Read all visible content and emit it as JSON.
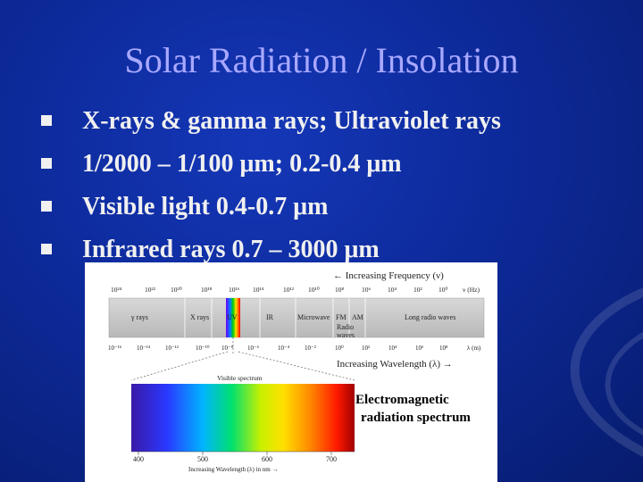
{
  "slide": {
    "title": "Solar Radiation / Insolation",
    "bullets": [
      "X-rays & gamma rays;  Ultraviolet rays",
      "1/2000 – 1/100 μm;  0.2-0.4 μm",
      "Visible light  0.4-0.7 μm",
      "Infrared rays  0.7 – 3000 μm"
    ],
    "caption": {
      "line1": "Electromagnetic",
      "line2": "radiation spectrum"
    }
  },
  "spectrum": {
    "frequency_label": "← Increasing Frequency (ν)",
    "frequency_ticks": [
      "10²⁴",
      "10²²",
      "10²⁰",
      "10¹⁸",
      "10¹⁶",
      "10¹⁴",
      "10¹²",
      "10¹⁰",
      "10⁸",
      "10⁶",
      "10⁴",
      "10²",
      "10⁰"
    ],
    "frequency_unit": "ν (Hz)",
    "bands": [
      "γ rays",
      "X rays",
      "UV",
      "IR",
      "Microwave",
      "FM",
      "AM",
      "Long radio waves"
    ],
    "radio_label_1": "Radio",
    "radio_label_2": "waves",
    "wavelength_ticks": [
      "10⁻¹⁶",
      "10⁻¹⁴",
      "10⁻¹²",
      "10⁻¹⁰",
      "10⁻⁸",
      "10⁻⁶",
      "10⁻⁴",
      "10⁻²",
      "10⁰",
      "10²",
      "10⁴",
      "10⁶",
      "10⁸"
    ],
    "wavelength_unit": "λ (m)",
    "wavelength_label": "Increasing Wavelength (λ) →",
    "visible_label": "Visible spectrum",
    "visible_ticks": [
      "400",
      "500",
      "600",
      "700"
    ],
    "visible_axis_label": "Increasing Wavelength (λ) in nm →"
  }
}
